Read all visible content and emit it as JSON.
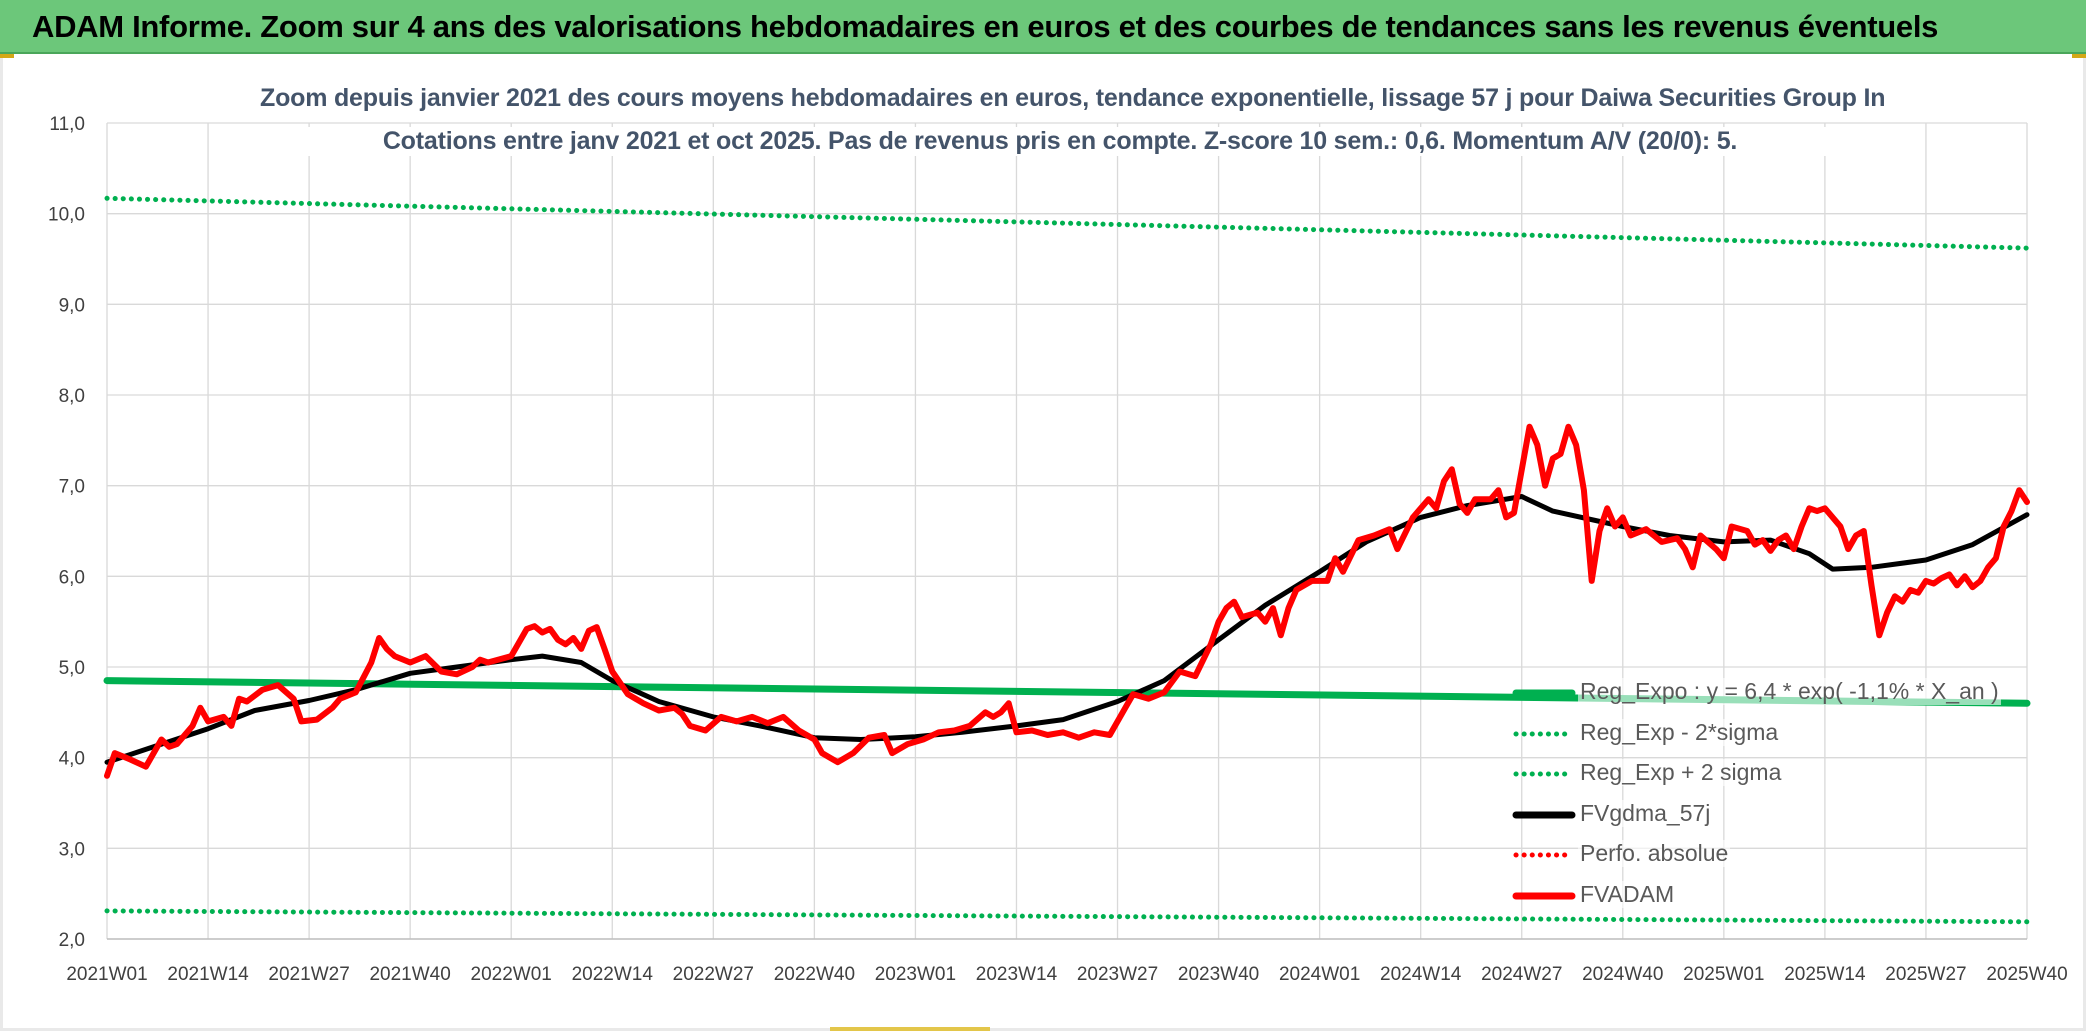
{
  "banner": {
    "title": "ADAM Informe. Zoom sur 4 ans des valorisations hebdomadaires en euros et des courbes de tendances sans les revenus éventuels"
  },
  "colors": {
    "banner": "#6cc77a",
    "green": "#00b050",
    "red": "#ff0000",
    "black": "#000000",
    "grid": "#d9d9d9",
    "title": "#44546a"
  },
  "chart_data": {
    "type": "line",
    "title": "Zoom depuis janvier 2021 des cours moyens hebdomadaires en euros, tendance exponentielle, lissage 57 j pour Daiwa Securities Group In",
    "subtitle": "Cotations entre janv 2021 et oct 2025. Pas de revenus pris en compte. Z-score 10 sem.: 0,6. Momentum A/V (20/0): 5.",
    "xlabel": "",
    "ylabel": "",
    "ylim": [
      2.0,
      11.0
    ],
    "grid": true,
    "legend_position": "right",
    "y_ticks": [
      "2,0",
      "3,0",
      "4,0",
      "5,0",
      "6,0",
      "7,0",
      "8,0",
      "9,0",
      "10,0",
      "11,0"
    ],
    "x_ticks": [
      "2021W01",
      "2021W14",
      "2021W27",
      "2021W40",
      "2022W01",
      "2022W14",
      "2022W27",
      "2022W40",
      "2023W01",
      "2023W14",
      "2023W27",
      "2023W40",
      "2024W01",
      "2024W14",
      "2024W27",
      "2024W40",
      "2025W01",
      "2025W14",
      "2025W27",
      "2025W40"
    ],
    "series": [
      {
        "name": "Reg_Expo : y = 6,4 * exp( -1,1% * X_an )",
        "style": "solid-thick",
        "color": "#00b050",
        "points": [
          [
            "2021W01",
            4.85
          ],
          [
            "2025W40",
            4.6
          ]
        ]
      },
      {
        "name": "Reg_Exp - 2*sigma",
        "style": "dotted",
        "color": "#00b050",
        "points": [
          [
            "2021W01",
            2.31
          ],
          [
            "2025W40",
            2.19
          ]
        ]
      },
      {
        "name": "Reg_Exp + 2 sigma",
        "style": "dotted",
        "color": "#00b050",
        "points": [
          [
            "2021W01",
            10.17
          ],
          [
            "2025W40",
            9.62
          ]
        ]
      },
      {
        "name": "FVgdma_57j",
        "style": "solid",
        "color": "#000000",
        "points": [
          [
            "2021W01",
            3.95
          ],
          [
            "2021W07",
            4.12
          ],
          [
            "2021W14",
            4.32
          ],
          [
            "2021W20",
            4.52
          ],
          [
            "2021W27",
            4.63
          ],
          [
            "2021W33",
            4.75
          ],
          [
            "2021W40",
            4.93
          ],
          [
            "2021W46",
            5.0
          ],
          [
            "2022W01",
            5.08
          ],
          [
            "2022W05",
            5.12
          ],
          [
            "2022W10",
            5.05
          ],
          [
            "2022W14",
            4.85
          ],
          [
            "2022W20",
            4.62
          ],
          [
            "2022W27",
            4.45
          ],
          [
            "2022W33",
            4.35
          ],
          [
            "2022W40",
            4.22
          ],
          [
            "2022W46",
            4.2
          ],
          [
            "2023W01",
            4.23
          ],
          [
            "2023W07",
            4.28
          ],
          [
            "2023W14",
            4.35
          ],
          [
            "2023W20",
            4.42
          ],
          [
            "2023W27",
            4.62
          ],
          [
            "2023W33",
            4.85
          ],
          [
            "2023W40",
            5.3
          ],
          [
            "2023W46",
            5.68
          ],
          [
            "2024W01",
            6.05
          ],
          [
            "2024W07",
            6.38
          ],
          [
            "2024W14",
            6.65
          ],
          [
            "2024W20",
            6.78
          ],
          [
            "2024W27",
            6.88
          ],
          [
            "2024W31",
            6.72
          ],
          [
            "2024W40",
            6.55
          ],
          [
            "2024W46",
            6.45
          ],
          [
            "2025W01",
            6.38
          ],
          [
            "2025W07",
            6.4
          ],
          [
            "2025W12",
            6.25
          ],
          [
            "2025W15",
            6.08
          ],
          [
            "2025W20",
            6.1
          ],
          [
            "2025W27",
            6.18
          ],
          [
            "2025W33",
            6.35
          ],
          [
            "2025W40",
            6.68
          ]
        ]
      },
      {
        "name": "Perfo. absolue",
        "style": "dotted",
        "color": "#ff0000",
        "points": []
      },
      {
        "name": "FVADAM",
        "style": "solid-thick",
        "color": "#ff0000",
        "points": [
          [
            "2021W01",
            3.8
          ],
          [
            "2021W02",
            4.05
          ],
          [
            "2021W04",
            3.98
          ],
          [
            "2021W06",
            3.9
          ],
          [
            "2021W08",
            4.2
          ],
          [
            "2021W09",
            4.12
          ],
          [
            "2021W10",
            4.15
          ],
          [
            "2021W12",
            4.35
          ],
          [
            "2021W13",
            4.55
          ],
          [
            "2021W14",
            4.4
          ],
          [
            "2021W16",
            4.45
          ],
          [
            "2021W17",
            4.35
          ],
          [
            "2021W18",
            4.65
          ],
          [
            "2021W19",
            4.62
          ],
          [
            "2021W21",
            4.75
          ],
          [
            "2021W23",
            4.8
          ],
          [
            "2021W25",
            4.65
          ],
          [
            "2021W26",
            4.4
          ],
          [
            "2021W28",
            4.42
          ],
          [
            "2021W30",
            4.55
          ],
          [
            "2021W31",
            4.65
          ],
          [
            "2021W33",
            4.72
          ],
          [
            "2021W35",
            5.05
          ],
          [
            "2021W36",
            5.32
          ],
          [
            "2021W37",
            5.2
          ],
          [
            "2021W38",
            5.12
          ],
          [
            "2021W40",
            5.05
          ],
          [
            "2021W42",
            5.12
          ],
          [
            "2021W44",
            4.95
          ],
          [
            "2021W46",
            4.92
          ],
          [
            "2021W48",
            5.0
          ],
          [
            "2021W49",
            5.08
          ],
          [
            "2021W50",
            5.05
          ],
          [
            "2022W01",
            5.12
          ],
          [
            "2022W03",
            5.42
          ],
          [
            "2022W04",
            5.45
          ],
          [
            "2022W05",
            5.38
          ],
          [
            "2022W06",
            5.42
          ],
          [
            "2022W07",
            5.3
          ],
          [
            "2022W08",
            5.25
          ],
          [
            "2022W09",
            5.32
          ],
          [
            "2022W10",
            5.2
          ],
          [
            "2022W11",
            5.4
          ],
          [
            "2022W12",
            5.44
          ],
          [
            "2022W13",
            5.2
          ],
          [
            "2022W14",
            4.95
          ],
          [
            "2022W16",
            4.7
          ],
          [
            "2022W18",
            4.6
          ],
          [
            "2022W20",
            4.52
          ],
          [
            "2022W22",
            4.55
          ],
          [
            "2022W23",
            4.48
          ],
          [
            "2022W24",
            4.35
          ],
          [
            "2022W26",
            4.3
          ],
          [
            "2022W28",
            4.45
          ],
          [
            "2022W30",
            4.4
          ],
          [
            "2022W32",
            4.45
          ],
          [
            "2022W34",
            4.38
          ],
          [
            "2022W36",
            4.45
          ],
          [
            "2022W38",
            4.3
          ],
          [
            "2022W40",
            4.2
          ],
          [
            "2022W41",
            4.05
          ],
          [
            "2022W43",
            3.95
          ],
          [
            "2022W45",
            4.05
          ],
          [
            "2022W47",
            4.22
          ],
          [
            "2022W49",
            4.25
          ],
          [
            "2022W50",
            4.05
          ],
          [
            "2022W52",
            4.15
          ],
          [
            "2023W02",
            4.2
          ],
          [
            "2023W04",
            4.28
          ],
          [
            "2023W06",
            4.3
          ],
          [
            "2023W08",
            4.35
          ],
          [
            "2023W10",
            4.5
          ],
          [
            "2023W11",
            4.45
          ],
          [
            "2023W12",
            4.5
          ],
          [
            "2023W13",
            4.6
          ],
          [
            "2023W14",
            4.28
          ],
          [
            "2023W16",
            4.3
          ],
          [
            "2023W18",
            4.25
          ],
          [
            "2023W20",
            4.28
          ],
          [
            "2023W22",
            4.22
          ],
          [
            "2023W24",
            4.28
          ],
          [
            "2023W26",
            4.25
          ],
          [
            "2023W28",
            4.55
          ],
          [
            "2023W29",
            4.7
          ],
          [
            "2023W31",
            4.65
          ],
          [
            "2023W33",
            4.72
          ],
          [
            "2023W35",
            4.95
          ],
          [
            "2023W37",
            4.9
          ],
          [
            "2023W39",
            5.25
          ],
          [
            "2023W40",
            5.5
          ],
          [
            "2023W41",
            5.65
          ],
          [
            "2023W42",
            5.72
          ],
          [
            "2023W43",
            5.55
          ],
          [
            "2023W45",
            5.6
          ],
          [
            "2023W46",
            5.5
          ],
          [
            "2023W47",
            5.65
          ],
          [
            "2023W48",
            5.35
          ],
          [
            "2023W49",
            5.65
          ],
          [
            "2023W50",
            5.85
          ],
          [
            "2023W52",
            5.95
          ],
          [
            "2024W02",
            5.95
          ],
          [
            "2024W03",
            6.2
          ],
          [
            "2024W04",
            6.05
          ],
          [
            "2024W06",
            6.4
          ],
          [
            "2024W08",
            6.45
          ],
          [
            "2024W10",
            6.52
          ],
          [
            "2024W11",
            6.3
          ],
          [
            "2024W13",
            6.65
          ],
          [
            "2024W15",
            6.85
          ],
          [
            "2024W16",
            6.75
          ],
          [
            "2024W17",
            7.05
          ],
          [
            "2024W18",
            7.18
          ],
          [
            "2024W19",
            6.8
          ],
          [
            "2024W20",
            6.7
          ],
          [
            "2024W21",
            6.85
          ],
          [
            "2024W23",
            6.85
          ],
          [
            "2024W24",
            6.95
          ],
          [
            "2024W25",
            6.65
          ],
          [
            "2024W26",
            6.7
          ],
          [
            "2024W28",
            7.65
          ],
          [
            "2024W29",
            7.45
          ],
          [
            "2024W30",
            7.0
          ],
          [
            "2024W31",
            7.3
          ],
          [
            "2024W32",
            7.35
          ],
          [
            "2024W33",
            7.65
          ],
          [
            "2024W34",
            7.45
          ],
          [
            "2024W35",
            6.95
          ],
          [
            "2024W36",
            5.95
          ],
          [
            "2024W37",
            6.5
          ],
          [
            "2024W38",
            6.75
          ],
          [
            "2024W39",
            6.55
          ],
          [
            "2024W40",
            6.65
          ],
          [
            "2024W41",
            6.45
          ],
          [
            "2024W43",
            6.52
          ],
          [
            "2024W45",
            6.38
          ],
          [
            "2024W47",
            6.42
          ],
          [
            "2024W48",
            6.3
          ],
          [
            "2024W49",
            6.1
          ],
          [
            "2024W50",
            6.45
          ],
          [
            "2024W52",
            6.3
          ],
          [
            "2025W01",
            6.2
          ],
          [
            "2025W02",
            6.55
          ],
          [
            "2025W04",
            6.5
          ],
          [
            "2025W05",
            6.35
          ],
          [
            "2025W06",
            6.4
          ],
          [
            "2025W07",
            6.28
          ],
          [
            "2025W08",
            6.4
          ],
          [
            "2025W09",
            6.45
          ],
          [
            "2025W10",
            6.3
          ],
          [
            "2025W11",
            6.55
          ],
          [
            "2025W12",
            6.75
          ],
          [
            "2025W13",
            6.72
          ],
          [
            "2025W14",
            6.75
          ],
          [
            "2025W15",
            6.65
          ],
          [
            "2025W16",
            6.55
          ],
          [
            "2025W17",
            6.3
          ],
          [
            "2025W18",
            6.45
          ],
          [
            "2025W19",
            6.5
          ],
          [
            "2025W20",
            5.9
          ],
          [
            "2025W21",
            5.35
          ],
          [
            "2025W22",
            5.6
          ],
          [
            "2025W23",
            5.78
          ],
          [
            "2025W24",
            5.72
          ],
          [
            "2025W25",
            5.85
          ],
          [
            "2025W26",
            5.82
          ],
          [
            "2025W27",
            5.95
          ],
          [
            "2025W28",
            5.92
          ],
          [
            "2025W29",
            5.98
          ],
          [
            "2025W30",
            6.02
          ],
          [
            "2025W31",
            5.9
          ],
          [
            "2025W32",
            6.0
          ],
          [
            "2025W33",
            5.88
          ],
          [
            "2025W34",
            5.95
          ],
          [
            "2025W35",
            6.1
          ],
          [
            "2025W36",
            6.2
          ],
          [
            "2025W37",
            6.55
          ],
          [
            "2025W38",
            6.72
          ],
          [
            "2025W39",
            6.95
          ],
          [
            "2025W40",
            6.82
          ]
        ]
      }
    ]
  }
}
